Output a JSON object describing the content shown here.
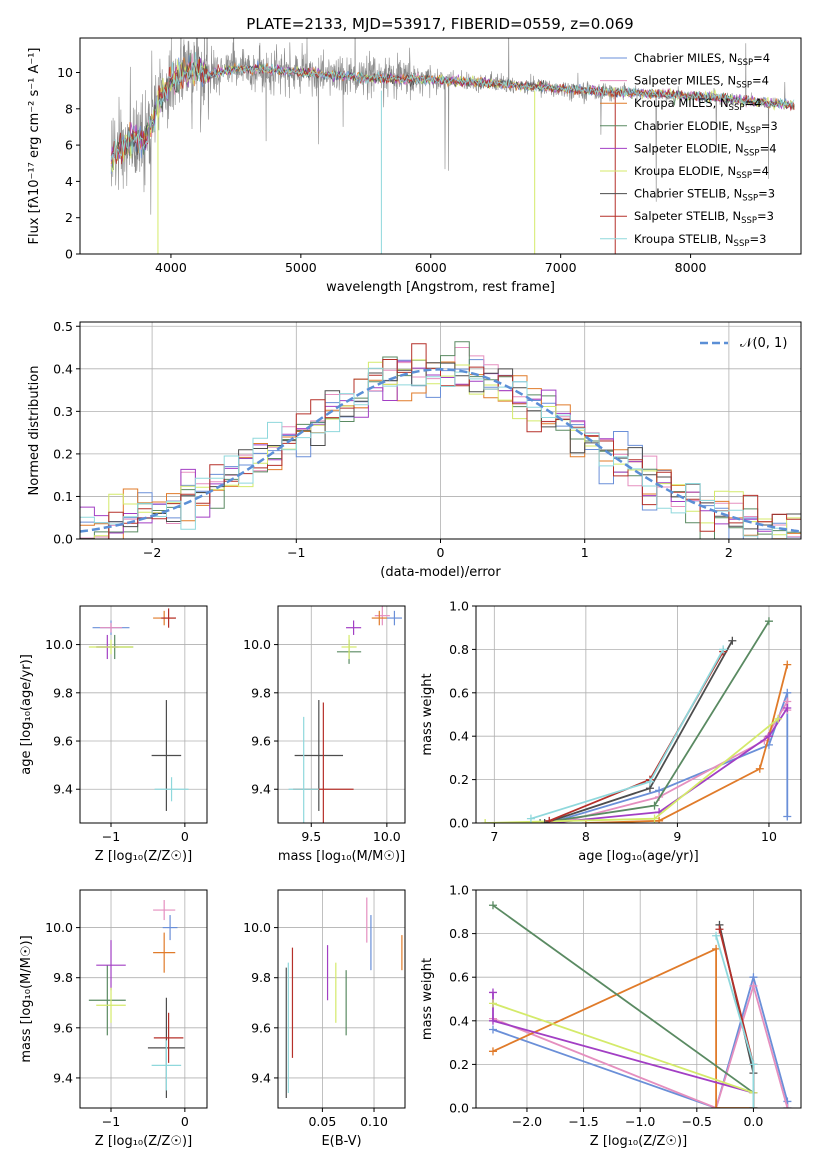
{
  "title": "PLATE=2133, MJD=53917, FIBERID=0559, z=0.069",
  "colors": [
    "#6a8fd8",
    "#e58fbf",
    "#e07b2a",
    "#5a8a62",
    "#a23fc4",
    "#d4ea6a",
    "#4d4d4d",
    "#b5302a",
    "#8fd8dc"
  ],
  "spectrum_color": "#8a8a8a",
  "legend": [
    {
      "name": "Chabrier MILES",
      "n": "4"
    },
    {
      "name": "Salpeter MILES",
      "n": "4"
    },
    {
      "name": "Kroupa MILES",
      "n": "4"
    },
    {
      "name": "Chabrier ELODIE",
      "n": "3"
    },
    {
      "name": "Salpeter ELODIE",
      "n": "4"
    },
    {
      "name": "Kroupa ELODIE",
      "n": "4"
    },
    {
      "name": "Chabrier STELIB",
      "n": "3"
    },
    {
      "name": "Salpeter STELIB",
      "n": "3"
    },
    {
      "name": "Kroupa STELIB",
      "n": "3"
    }
  ],
  "chart_data": [
    {
      "id": "spectrum",
      "type": "line",
      "xlabel": "wavelength [Angstrom, rest frame]",
      "ylabel": "Flux [fλ10⁻¹⁷ erg cm⁻² s⁻¹ A⁻¹]",
      "xlim": [
        3300,
        8850
      ],
      "ylim": [
        0,
        11.9
      ],
      "xticks": [
        4000,
        5000,
        6000,
        7000,
        8000
      ],
      "yticks": [
        0,
        2,
        4,
        6,
        8,
        10
      ],
      "model_trend": {
        "x": [
          3540,
          3600,
          3700,
          3800,
          3900,
          4000,
          4100,
          4200,
          4300,
          4500,
          4700,
          5000,
          5500,
          6000,
          6500,
          7000,
          7400,
          7800,
          8200,
          8600,
          8800
        ],
        "y": [
          5.2,
          5.8,
          6.3,
          6.2,
          8.2,
          9.6,
          10.0,
          10.2,
          9.9,
          10.2,
          10.2,
          10.0,
          9.7,
          9.6,
          9.4,
          9.1,
          8.9,
          8.8,
          8.6,
          8.3,
          8.2
        ]
      },
      "observed_range": [
        3540,
        8800
      ]
    },
    {
      "id": "residuals",
      "type": "histogram",
      "xlabel": "(data-model)/error",
      "ylabel": "Normed distribution",
      "xlim": [
        -2.5,
        2.5
      ],
      "ylim": [
        0,
        0.51
      ],
      "xticks": [
        -2,
        -1,
        0,
        1,
        2
      ],
      "yticks": [
        0.0,
        0.1,
        0.2,
        0.3,
        0.4,
        0.5
      ],
      "bin_width": 0.1,
      "reference_curve": "N(0,1)",
      "reference_label": "𝒩(0, 1)"
    },
    {
      "id": "age_vs_Z",
      "type": "errorbar",
      "xlabel": "Z [log₁₀(Z/Z☉)]",
      "ylabel": "age  [log₁₀(age/yr)]",
      "xlim": [
        -1.42,
        0.3
      ],
      "ylim": [
        9.26,
        10.16
      ],
      "xticks": [
        -1,
        0
      ],
      "yticks": [
        9.4,
        9.6,
        9.8,
        10.0
      ],
      "points": [
        {
          "x": -1.0,
          "xerr": 0.25,
          "y": 10.07,
          "yerr": 0.03
        },
        {
          "x": -1.0,
          "xerr": 0.15,
          "y": 10.07,
          "yerr": 0.02
        },
        {
          "x": -0.28,
          "xerr": 0.15,
          "y": 10.11,
          "yerr": 0.03
        },
        {
          "x": -0.95,
          "xerr": 0.25,
          "y": 9.99,
          "yerr": 0.05
        },
        {
          "x": -1.05,
          "xerr": 0.15,
          "y": 9.99,
          "yerr": 0.05
        },
        {
          "x": -1.0,
          "xerr": 0.3,
          "y": 9.99,
          "yerr": 0.03
        },
        {
          "x": -0.25,
          "xerr": 0.2,
          "y": 9.54,
          "yerr": 0.23
        },
        {
          "x": -0.22,
          "xerr": 0.1,
          "y": 10.11,
          "yerr": 0.04
        },
        {
          "x": -0.18,
          "xerr": 0.23,
          "y": 9.4,
          "yerr": 0.05
        }
      ]
    },
    {
      "id": "age_vs_mass",
      "type": "errorbar",
      "xlabel": "mass [log₁₀(M/M☉)]",
      "ylabel": "",
      "xlim": [
        9.28,
        10.12
      ],
      "ylim": [
        9.26,
        10.16
      ],
      "xticks": [
        9.5,
        10.0
      ],
      "yticks": [
        9.4,
        9.6,
        9.8,
        10.0
      ],
      "points": [
        {
          "x": 10.05,
          "xerr": 0.05,
          "y": 10.11,
          "yerr": 0.03
        },
        {
          "x": 9.97,
          "xerr": 0.05,
          "y": 10.12,
          "yerr": 0.04
        },
        {
          "x": 9.95,
          "xerr": 0.05,
          "y": 10.11,
          "yerr": 0.03
        },
        {
          "x": 9.75,
          "xerr": 0.08,
          "y": 9.97,
          "yerr": 0.05
        },
        {
          "x": 9.78,
          "xerr": 0.05,
          "y": 10.07,
          "yerr": 0.03
        },
        {
          "x": 9.75,
          "xerr": 0.05,
          "y": 9.99,
          "yerr": 0.05
        },
        {
          "x": 9.55,
          "xerr": 0.16,
          "y": 9.54,
          "yerr": 0.23
        },
        {
          "x": 9.58,
          "xerr": 0.2,
          "y": 9.4,
          "yerr": 0.36
        },
        {
          "x": 9.45,
          "xerr": 0.1,
          "y": 9.4,
          "yerr": 0.3
        }
      ]
    },
    {
      "id": "mw_vs_age",
      "type": "line",
      "xlabel": "age  [log₁₀(age/yr)]",
      "ylabel": "mass weight",
      "xlim": [
        6.8,
        10.35
      ],
      "ylim": [
        0,
        1.0
      ],
      "xticks": [
        7,
        8,
        9,
        10
      ],
      "yticks": [
        0.0,
        0.2,
        0.4,
        0.6,
        0.8,
        1.0
      ],
      "series": [
        {
          "x": [
            7.6,
            8.8,
            10.0,
            10.2,
            10.2
          ],
          "y": [
            0.0,
            0.15,
            0.36,
            0.6,
            0.03
          ]
        },
        {
          "x": [
            7.7,
            8.8,
            9.95,
            10.2,
            10.2
          ],
          "y": [
            0.0,
            0.12,
            0.38,
            0.56,
            0.52
          ]
        },
        {
          "x": [
            8.0,
            8.8,
            9.9,
            10.0,
            10.2
          ],
          "y": [
            0.0,
            0.01,
            0.25,
            0.4,
            0.73
          ]
        },
        {
          "x": [
            7.5,
            8.75,
            10.0
          ],
          "y": [
            0.0,
            0.08,
            0.93
          ]
        },
        {
          "x": [
            7.6,
            8.8,
            10.0,
            10.2
          ],
          "y": [
            0.0,
            0.05,
            0.4,
            0.53
          ]
        },
        {
          "x": [
            6.9,
            8.75,
            10.1
          ],
          "y": [
            0.0,
            0.02,
            0.48
          ]
        },
        {
          "x": [
            7.55,
            8.7,
            9.6
          ],
          "y": [
            0.0,
            0.16,
            0.84
          ]
        },
        {
          "x": [
            7.6,
            8.7,
            9.5
          ],
          "y": [
            0.01,
            0.2,
            0.79
          ]
        },
        {
          "x": [
            7.4,
            8.7,
            9.5
          ],
          "y": [
            0.02,
            0.19,
            0.8
          ]
        }
      ]
    },
    {
      "id": "mass_vs_Z",
      "type": "errorbar",
      "xlabel": "Z [log₁₀(Z/Z☉)]",
      "ylabel": "mass [log₁₀(M/M☉)]",
      "xlim": [
        -1.42,
        0.3
      ],
      "ylim": [
        9.28,
        10.15
      ],
      "xticks": [
        -1,
        0
      ],
      "yticks": [
        9.4,
        9.6,
        9.8,
        10.0
      ],
      "points": [
        {
          "x": -0.2,
          "xerr": 0.1,
          "y": 10.0,
          "yerr": 0.05
        },
        {
          "x": -0.28,
          "xerr": 0.15,
          "y": 10.07,
          "yerr": 0.04
        },
        {
          "x": -0.28,
          "xerr": 0.15,
          "y": 9.9,
          "yerr": 0.08
        },
        {
          "x": -1.05,
          "xerr": 0.25,
          "y": 9.71,
          "yerr": 0.14
        },
        {
          "x": -1.0,
          "xerr": 0.2,
          "y": 9.85,
          "yerr": 0.1
        },
        {
          "x": -1.0,
          "xerr": 0.2,
          "y": 9.69,
          "yerr": 0.07
        },
        {
          "x": -0.25,
          "xerr": 0.25,
          "y": 9.52,
          "yerr": 0.2
        },
        {
          "x": -0.22,
          "xerr": 0.2,
          "y": 9.56,
          "yerr": 0.1
        },
        {
          "x": -0.25,
          "xerr": 0.2,
          "y": 9.45,
          "yerr": 0.1
        }
      ]
    },
    {
      "id": "mass_vs_EBV",
      "type": "errorbar",
      "xlabel": "E(B-V)",
      "ylabel": "",
      "xlim": [
        0.007,
        0.13
      ],
      "ylim": [
        9.28,
        10.15
      ],
      "xticks": [
        0.05,
        0.1
      ],
      "yticks": [
        9.4,
        9.6,
        9.8,
        10.0
      ],
      "points": [
        {
          "x": 0.097,
          "xerr": 0.0,
          "y": 9.94,
          "yerr": 0.11
        },
        {
          "x": 0.093,
          "xerr": 0.0,
          "y": 10.03,
          "yerr": 0.09
        },
        {
          "x": 0.127,
          "xerr": 0.0,
          "y": 9.9,
          "yerr": 0.07
        },
        {
          "x": 0.073,
          "xerr": 0.0,
          "y": 9.7,
          "yerr": 0.13
        },
        {
          "x": 0.055,
          "xerr": 0.0,
          "y": 9.82,
          "yerr": 0.11
        },
        {
          "x": 0.063,
          "xerr": 0.0,
          "y": 9.74,
          "yerr": 0.12
        },
        {
          "x": 0.015,
          "xerr": 0.0,
          "y": 9.58,
          "yerr": 0.26
        },
        {
          "x": 0.021,
          "xerr": 0.0,
          "y": 9.7,
          "yerr": 0.22
        },
        {
          "x": 0.017,
          "xerr": 0.0,
          "y": 9.6,
          "yerr": 0.26
        }
      ]
    },
    {
      "id": "mw_vs_Z",
      "type": "line",
      "xlabel": "Z [log₁₀(Z/Z☉)]",
      "ylabel": "mass weight",
      "xlim": [
        -2.45,
        0.42
      ],
      "ylim": [
        0,
        1.0
      ],
      "xticks": [
        -2.0,
        -1.5,
        -1.0,
        -0.5,
        0.0
      ],
      "yticks": [
        0.0,
        0.2,
        0.4,
        0.6,
        0.8,
        1.0
      ],
      "series": [
        {
          "x": [
            -2.3,
            -0.33,
            0.0,
            0.3,
            0.3
          ],
          "y": [
            0.36,
            0.0,
            0.6,
            0.03,
            0.0
          ]
        },
        {
          "x": [
            -2.3,
            -0.33,
            0.0,
            0.3
          ],
          "y": [
            0.41,
            0.0,
            0.56,
            0.0
          ]
        },
        {
          "x": [
            -2.3,
            -0.33,
            -0.33,
            0.0
          ],
          "y": [
            0.26,
            0.73,
            0.0,
            0.0
          ]
        },
        {
          "x": [
            -2.3,
            0.0,
            0.0
          ],
          "y": [
            0.93,
            0.07,
            0.07
          ]
        },
        {
          "x": [
            -2.3,
            -2.3,
            0.0
          ],
          "y": [
            0.53,
            0.4,
            0.07
          ]
        },
        {
          "x": [
            -2.3,
            0.0,
            0.0
          ],
          "y": [
            0.48,
            0.07,
            0.0
          ]
        },
        {
          "x": [
            -0.3,
            0.0,
            0.0
          ],
          "y": [
            0.84,
            0.16,
            0.0
          ]
        },
        {
          "x": [
            -0.3,
            0.0,
            0.0
          ],
          "y": [
            0.82,
            0.2,
            0.0
          ]
        },
        {
          "x": [
            -0.33,
            0.0,
            0.0
          ],
          "y": [
            0.79,
            0.2,
            0.0
          ]
        }
      ]
    }
  ]
}
